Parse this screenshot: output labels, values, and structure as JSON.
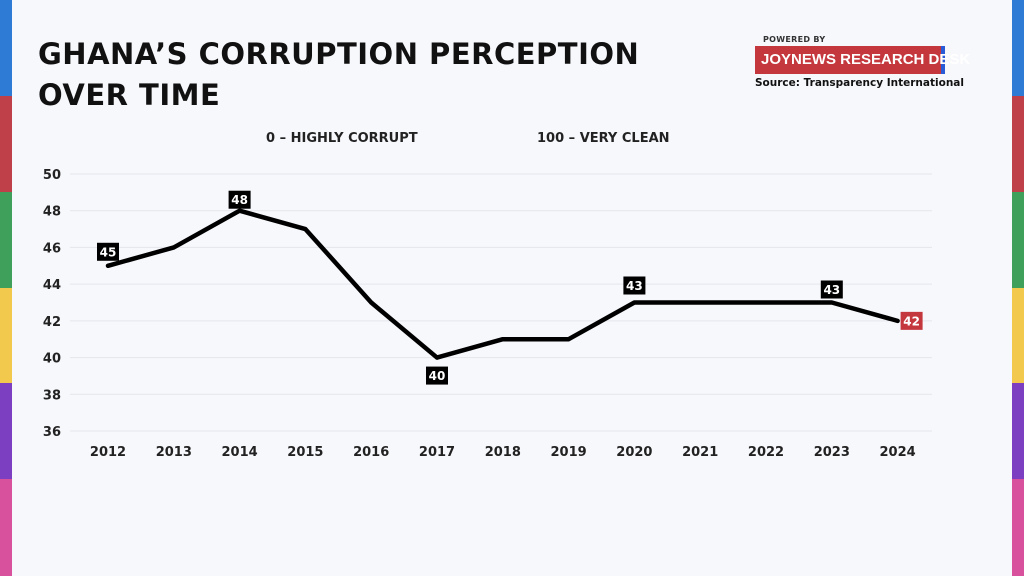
{
  "header": {
    "title": "GHANA’S CORRUPTION PERCEPTION OVER TIME",
    "powered_by": "POWERED BY",
    "brand": "JOYNEWS RESEARCH DESK",
    "source": "Source: Transparency International"
  },
  "scale": {
    "low": "0 – HIGHLY CORRUPT",
    "high": "100 – VERY CLEAN"
  },
  "colors": {
    "line": "#000000",
    "label_bg": "#000000",
    "highlight_label_bg": "#c4373d",
    "brand_bg": "#c4373d",
    "strip": [
      "#2e7bd6",
      "#c0404a",
      "#3ea05a",
      "#f2c94c",
      "#7d3fc2",
      "#d8519c"
    ]
  },
  "chart_data": {
    "type": "line",
    "title": "GHANA’S CORRUPTION PERCEPTION OVER TIME",
    "xlabel": "",
    "ylabel": "",
    "x": [
      "2012",
      "2013",
      "2014",
      "2015",
      "2016",
      "2017",
      "2018",
      "2019",
      "2020",
      "2021",
      "2022",
      "2023",
      "2024"
    ],
    "series": [
      {
        "values": [
          45,
          46,
          48,
          47,
          43,
          40,
          41,
          41,
          43,
          43,
          43,
          43,
          42
        ]
      }
    ],
    "ylim": [
      36,
      50
    ],
    "yticks": [
      36,
      38,
      40,
      42,
      44,
      46,
      48,
      50
    ],
    "data_labels": [
      {
        "x": "2012",
        "value": 45,
        "highlight": false
      },
      {
        "x": "2014",
        "value": 48,
        "highlight": false
      },
      {
        "x": "2017",
        "value": 40,
        "highlight": false
      },
      {
        "x": "2020",
        "value": 43,
        "highlight": false
      },
      {
        "x": "2023",
        "value": 43,
        "highlight": false
      },
      {
        "x": "2024",
        "value": 42,
        "highlight": true
      }
    ],
    "grid": true,
    "legend": "none"
  }
}
